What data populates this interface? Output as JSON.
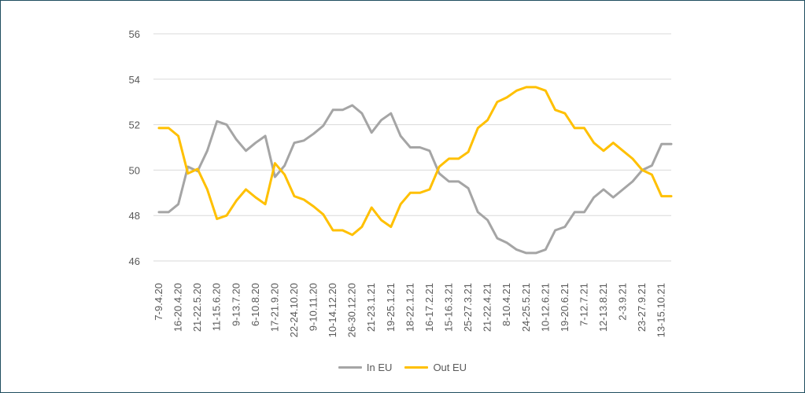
{
  "chart_data": {
    "type": "line",
    "title": "",
    "xlabel": "",
    "ylabel": "",
    "ylim": [
      46,
      56
    ],
    "yticks": [
      46,
      48,
      50,
      52,
      54,
      56
    ],
    "grid": true,
    "legend_position": "bottom",
    "categories": [
      "7-9.4.20",
      "",
      "16-20.4.20",
      "",
      "21-22.5.20",
      "",
      "11-15.6.20",
      "",
      "9-13.7.20",
      "",
      "6-10.8.20",
      "",
      "17-21.9.20",
      "",
      "22-24.10.20",
      "",
      "9-10.11.20",
      "",
      "10-14.12.20",
      "",
      "26-30.12.20",
      "",
      "21-23.1.21",
      "",
      "19-25.1.21",
      "",
      "18-22.1.21",
      "",
      "16-17.2.21",
      "",
      "15-16.3.21",
      "",
      "25-27.3.21",
      "",
      "21-22.4.21",
      "",
      "8-10.4.21",
      "",
      "24-25.5.21",
      "",
      "10-12.6.21",
      "",
      "19-20.6.21",
      "",
      "7-12.7.21",
      "",
      "12-13.8.21",
      "",
      "2-3.9.21",
      "",
      "23-27.9.21",
      "",
      "13-15.10.21",
      ""
    ],
    "series": [
      {
        "name": "In EU",
        "color": "#a5a5a5",
        "values": [
          48.15,
          48.15,
          48.5,
          50.15,
          49.95,
          50.85,
          52.15,
          52.0,
          51.35,
          50.85,
          51.2,
          51.5,
          49.7,
          50.2,
          51.2,
          51.3,
          51.6,
          51.95,
          52.65,
          52.65,
          52.85,
          52.5,
          51.65,
          52.2,
          52.5,
          51.5,
          51.0,
          51.0,
          50.85,
          49.85,
          49.5,
          49.5,
          49.2,
          48.15,
          47.8,
          47.0,
          46.8,
          46.5,
          46.35,
          46.35,
          46.5,
          47.35,
          47.5,
          48.15,
          48.15,
          48.8,
          49.15,
          48.8,
          49.15,
          49.5,
          50.0,
          50.2,
          51.15,
          51.15
        ]
      },
      {
        "name": "Out EU",
        "color": "#ffc000",
        "values": [
          51.85,
          51.85,
          51.5,
          49.85,
          50.05,
          49.15,
          47.85,
          48.0,
          48.65,
          49.15,
          48.8,
          48.5,
          50.3,
          49.8,
          48.85,
          48.7,
          48.4,
          48.05,
          47.35,
          47.35,
          47.15,
          47.5,
          48.35,
          47.8,
          47.5,
          48.5,
          49.0,
          49.0,
          49.15,
          50.15,
          50.5,
          50.5,
          50.8,
          51.85,
          52.2,
          53.0,
          53.2,
          53.5,
          53.65,
          53.65,
          53.5,
          52.65,
          52.5,
          51.85,
          51.85,
          51.2,
          50.85,
          51.2,
          50.85,
          50.5,
          50.0,
          49.8,
          48.85,
          48.85
        ]
      }
    ]
  }
}
